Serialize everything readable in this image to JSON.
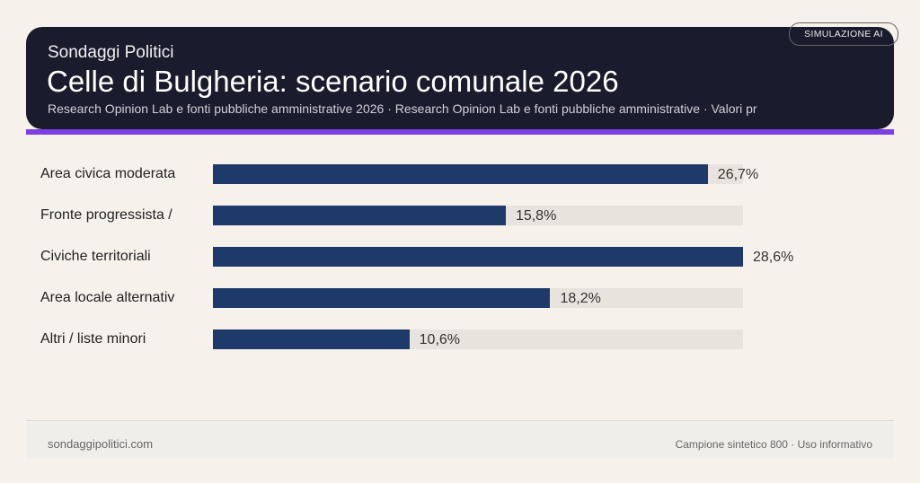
{
  "header": {
    "brand": "Sondaggi Politici",
    "title": "Celle di Bulgheria: scenario comunale 2026",
    "subtitle": "Research Opinion Lab e fonti pubbliche amministrative 2026 · Research Opinion Lab e fonti pubbliche amministrative · Valori pr",
    "badge": "SIMULAZIONE AI"
  },
  "colors": {
    "bar": "#1e3a6b",
    "track": "#e8e3dd",
    "accent": "#7b3fe4",
    "header_bg": "#1b1b2e"
  },
  "chart_data": {
    "type": "bar",
    "orientation": "horizontal",
    "categories": [
      "Area civica moderata",
      "Fronte progressista /",
      "Civiche territoriali",
      "Area locale alternativ",
      "Altri / liste minori"
    ],
    "values": [
      26.7,
      15.8,
      28.6,
      18.2,
      10.6
    ],
    "value_labels": [
      "26,7%",
      "15,8%",
      "28,6%",
      "18,2%",
      "10,6%"
    ],
    "xlim": [
      0,
      28.6
    ],
    "grid": false
  },
  "footer": {
    "site": "sondaggipolitici.com",
    "note": "Campione sintetico 800 · Uso informativo"
  }
}
